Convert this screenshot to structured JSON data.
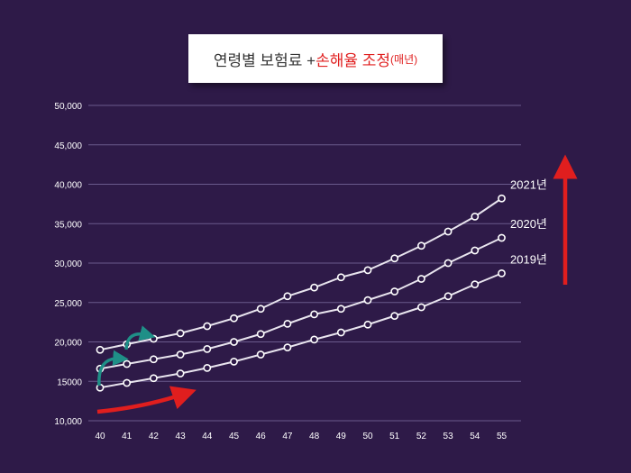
{
  "title": {
    "main": "연령별 보험료 + ",
    "highlight": "손해율 조정",
    "suffix": "(매년)",
    "highlight_color": "#e01e1e"
  },
  "chart_data": {
    "type": "line",
    "categories": [
      "40",
      "41",
      "42",
      "43",
      "44",
      "45",
      "46",
      "47",
      "48",
      "49",
      "50",
      "51",
      "52",
      "53",
      "54",
      "55"
    ],
    "y_ticks": [
      "10,000",
      "15000",
      "20,000",
      "25,000",
      "30,000",
      "35,000",
      "40,000",
      "45,000",
      "50,000"
    ],
    "ylim": [
      10000,
      50000
    ],
    "grid": true,
    "series": [
      {
        "name": "2019년",
        "values": [
          14200,
          14800,
          15400,
          16000,
          16700,
          17500,
          18400,
          19300,
          20300,
          21200,
          22200,
          23300,
          24400,
          25800,
          27300,
          28700
        ]
      },
      {
        "name": "2020년",
        "values": [
          16600,
          17200,
          17800,
          18400,
          19100,
          20000,
          21000,
          22300,
          23500,
          24200,
          25300,
          26400,
          28000,
          30000,
          31600,
          33200
        ]
      },
      {
        "name": "2021년",
        "values": [
          19000,
          19700,
          20400,
          21100,
          22000,
          23000,
          24200,
          25800,
          26900,
          28200,
          29100,
          30600,
          32200,
          34000,
          35900,
          38200
        ]
      }
    ],
    "colors": {
      "line": "#e8e4ee",
      "grid": "#6a5a8c",
      "arrow_red": "#e01e1e",
      "arrow_teal": "#1f8f87"
    }
  }
}
